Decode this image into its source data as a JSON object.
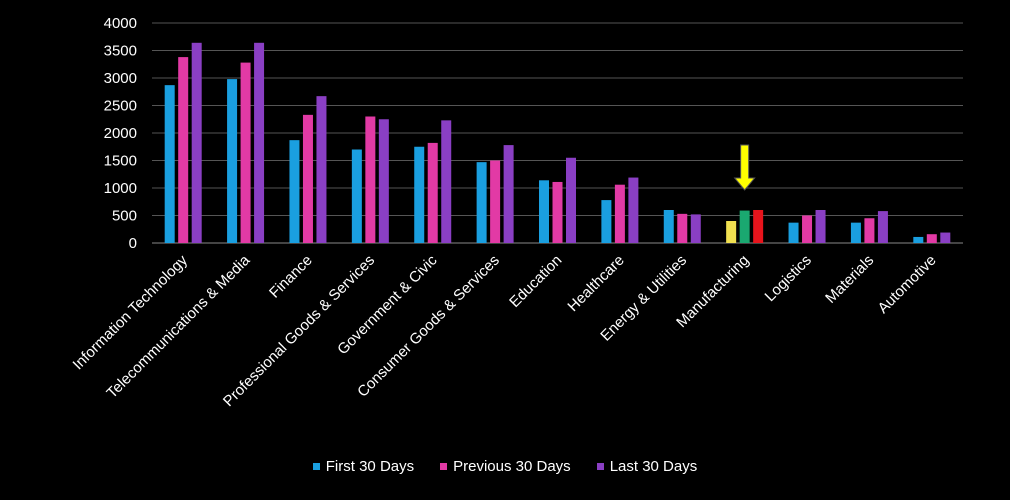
{
  "chart_data": {
    "type": "bar",
    "categories": [
      "Information Technology",
      "Telecommunications & Media",
      "Finance",
      "Professional Goods & Services",
      "Government & Civic",
      "Consumer Goods & Services",
      "Education",
      "Healthcare",
      "Energy & Utilities",
      "Manufacturing",
      "Logistics",
      "Materials",
      "Automotive"
    ],
    "series": [
      {
        "name": "First 30 Days",
        "color": "#1a9fe0",
        "values": [
          2870,
          2980,
          1870,
          1700,
          1750,
          1470,
          1140,
          780,
          600,
          400,
          370,
          370,
          110
        ]
      },
      {
        "name": "Previous 30 Days",
        "color": "#e23aa5",
        "values": [
          3380,
          3280,
          2330,
          2300,
          1820,
          1500,
          1110,
          1060,
          530,
          590,
          500,
          450,
          160
        ]
      },
      {
        "name": "Last 30 Days",
        "color": "#8a3fc4",
        "values": [
          3640,
          3640,
          2670,
          2250,
          2230,
          1780,
          1550,
          1190,
          520,
          600,
          600,
          580,
          190
        ]
      }
    ],
    "highlight": {
      "category": "Manufacturing",
      "colors": [
        "#f0e050",
        "#1aa870",
        "#e8141c"
      ],
      "arrow_color": "#ffff00"
    },
    "ylim": [
      0,
      4000
    ],
    "yticks": [
      "0",
      "500",
      "1000",
      "1500",
      "2000",
      "2500",
      "3000",
      "3500",
      "4000"
    ],
    "grid": true,
    "legend_position": "bottom",
    "colors": {
      "background": "#000000",
      "grid": "#555555",
      "text": "#ffffff"
    }
  }
}
